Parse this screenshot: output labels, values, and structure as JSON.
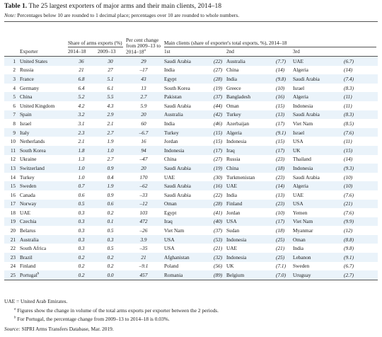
{
  "title": {
    "label": "Table 1.",
    "text": "The 25 largest exporters of major arms and their main clients, 2014–18"
  },
  "note": {
    "label": "Note:",
    "text": "Percentages below 10 are rounded to 1 decimal place; percentages over 10 are rounded to whole numbers."
  },
  "headers": {
    "exporter": "Exporter",
    "share": "Share of arms exports (%)",
    "share_y1": "2014–18",
    "share_y2": "2009–13",
    "change": "Per cent change from 2009–13 to 2014–18",
    "change_sup": "a",
    "clients": "Main clients (share of exporter's total exports, %), 2014–18",
    "first": "1st",
    "second": "2nd",
    "third": "3rd"
  },
  "rows": [
    {
      "rank": "1",
      "name": "United States",
      "s1": "36",
      "s2": "30",
      "chg": "29",
      "c1": "Saudi Arabia",
      "p1": "22",
      "c2": "Australia",
      "p2": "7.7",
      "c3": "UAE",
      "p3": "6.7"
    },
    {
      "rank": "2",
      "name": "Russia",
      "s1": "21",
      "s2": "27",
      "chg": "–17",
      "c1": "India",
      "p1": "27",
      "c2": "China",
      "p2": "14",
      "c3": "Algeria",
      "p3": "14"
    },
    {
      "rank": "3",
      "name": "France",
      "s1": "6.8",
      "s2": "5.1",
      "chg": "43",
      "c1": "Egypt",
      "p1": "28",
      "c2": "India",
      "p2": "9.8",
      "c3": "Saudi Arabia",
      "p3": "7.4"
    },
    {
      "rank": "4",
      "name": "Germany",
      "s1": "6.4",
      "s2": "6.1",
      "chg": "13",
      "c1": "South Korea",
      "p1": "19",
      "c2": "Greece",
      "p2": "10",
      "c3": "Israel",
      "p3": "8.3"
    },
    {
      "rank": "5",
      "name": "China",
      "s1": "5.2",
      "s2": "5.5",
      "chg": "2.7",
      "c1": "Pakistan",
      "p1": "37",
      "c2": "Bangladesh",
      "p2": "16",
      "c3": "Algeria",
      "p3": "11"
    },
    {
      "rank": "6",
      "name": "United Kingdom",
      "s1": "4.2",
      "s2": "4.3",
      "chg": "5.9",
      "c1": "Saudi Arabia",
      "p1": "44",
      "c2": "Oman",
      "p2": "15",
      "c3": "Indonesia",
      "p3": "11"
    },
    {
      "rank": "7",
      "name": "Spain",
      "s1": "3.2",
      "s2": "2.9",
      "chg": "20",
      "c1": "Australia",
      "p1": "42",
      "c2": "Turkey",
      "p2": "13",
      "c3": "Saudi Arabia",
      "p3": "8.3"
    },
    {
      "rank": "8",
      "name": "Israel",
      "s1": "3.1",
      "s2": "2.1",
      "chg": "60",
      "c1": "India",
      "p1": "46",
      "c2": "Azerbaijan",
      "p2": "17",
      "c3": "Viet Nam",
      "p3": "8.5"
    },
    {
      "rank": "9",
      "name": "Italy",
      "s1": "2.3",
      "s2": "2.7",
      "chg": "–6.7",
      "c1": "Turkey",
      "p1": "15",
      "c2": "Algeria",
      "p2": "9.1",
      "c3": "Israel",
      "p3": "7.6"
    },
    {
      "rank": "10",
      "name": "Netherlands",
      "s1": "2.1",
      "s2": "1.9",
      "chg": "16",
      "c1": "Jordan",
      "p1": "15",
      "c2": "Indonesia",
      "p2": "15",
      "c3": "USA",
      "p3": "11"
    },
    {
      "rank": "11",
      "name": "South Korea",
      "s1": "1.8",
      "s2": "1.0",
      "chg": "94",
      "c1": "Indonesia",
      "p1": "17",
      "c2": "Iraq",
      "p2": "17",
      "c3": "UK",
      "p3": "15"
    },
    {
      "rank": "12",
      "name": "Ukraine",
      "s1": "1.3",
      "s2": "2.7",
      "chg": "–47",
      "c1": "China",
      "p1": "27",
      "c2": "Russia",
      "p2": "23",
      "c3": "Thailand",
      "p3": "14"
    },
    {
      "rank": "13",
      "name": "Switzerland",
      "s1": "1.0",
      "s2": "0.9",
      "chg": "20",
      "c1": "Saudi Arabia",
      "p1": "19",
      "c2": "China",
      "p2": "18",
      "c3": "Indonesia",
      "p3": "9.3"
    },
    {
      "rank": "14",
      "name": "Turkey",
      "s1": "1.0",
      "s2": "0.4",
      "chg": "170",
      "c1": "UAE",
      "p1": "30",
      "c2": "Turkmenistan",
      "p2": "23",
      "c3": "Saudi Arabia",
      "p3": "10"
    },
    {
      "rank": "15",
      "name": "Sweden",
      "s1": "0.7",
      "s2": "1.9",
      "chg": "–62",
      "c1": "Saudi Arabia",
      "p1": "16",
      "c2": "UAE",
      "p2": "14",
      "c3": "Algeria",
      "p3": "10"
    },
    {
      "rank": "16",
      "name": "Canada",
      "s1": "0.6",
      "s2": "0.9",
      "chg": "–33",
      "c1": "Saudi Arabia",
      "p1": "22",
      "c2": "India",
      "p2": "13",
      "c3": "UAE",
      "p3": "7.6"
    },
    {
      "rank": "17",
      "name": "Norway",
      "s1": "0.5",
      "s2": "0.6",
      "chg": "–12",
      "c1": "Oman",
      "p1": "28",
      "c2": "Finland",
      "p2": "23",
      "c3": "USA",
      "p3": "21"
    },
    {
      "rank": "18",
      "name": "UAE",
      "s1": "0.3",
      "s2": "0.2",
      "chg": "103",
      "c1": "Egypt",
      "p1": "41",
      "c2": "Jordan",
      "p2": "10",
      "c3": "Yemen",
      "p3": "7.6"
    },
    {
      "rank": "19",
      "name": "Czechia",
      "s1": "0.3",
      "s2": "0.1",
      "chg": "472",
      "c1": "Iraq",
      "p1": "40",
      "c2": "USA",
      "p2": "17",
      "c3": "Viet Nam",
      "p3": "9.9"
    },
    {
      "rank": "20",
      "name": "Belarus",
      "s1": "0.3",
      "s2": "0.5",
      "chg": "–26",
      "c1": "Viet Nam",
      "p1": "37",
      "c2": "Sudan",
      "p2": "18",
      "c3": "Myanmar",
      "p3": "12"
    },
    {
      "rank": "21",
      "name": "Australia",
      "s1": "0.3",
      "s2": "0.3",
      "chg": "3.9",
      "c1": "USA",
      "p1": "53",
      "c2": "Indonesia",
      "p2": "25",
      "c3": "Oman",
      "p3": "8.8"
    },
    {
      "rank": "22",
      "name": "South Africa",
      "s1": "0.3",
      "s2": "0.5",
      "chg": "–35",
      "c1": "USA",
      "p1": "21",
      "c2": "UAE",
      "p2": "21",
      "c3": "India",
      "p3": "9.8"
    },
    {
      "rank": "23",
      "name": "Brazil",
      "s1": "0.2",
      "s2": "0.2",
      "chg": "21",
      "c1": "Afghanistan",
      "p1": "32",
      "c2": "Indonesia",
      "p2": "25",
      "c3": "Lebanon",
      "p3": "9.1"
    },
    {
      "rank": "24",
      "name": "Finland",
      "s1": "0.2",
      "s2": "0.2",
      "chg": "–9.1",
      "c1": "Poland",
      "p1": "56",
      "c2": "UK",
      "p2": "7.1",
      "c3": "Sweden",
      "p3": "6.7"
    },
    {
      "rank": "25",
      "name": "Portugal",
      "sup": "b",
      "s1": "0.2",
      "s2": "0.0",
      "chg": "457",
      "c1": "Romania",
      "p1": "89",
      "c2": "Belgium",
      "p2": "7.0",
      "c3": "Uruguay",
      "p3": "2.7"
    }
  ],
  "footnotes": {
    "abbr": "UAE = United Arab Emirates.",
    "a_mark": "a",
    "a_text": "Figures show the change in volume of the total arms exports per exporter between the 2 periods.",
    "b_mark": "b",
    "b_text": "For Portugal, the percentage change from 2009–13 to 2014–18 is 0.03%.",
    "source_label": "Source:",
    "source_text": "SIPRI Arms Transfers Database, Mar. 2019."
  }
}
